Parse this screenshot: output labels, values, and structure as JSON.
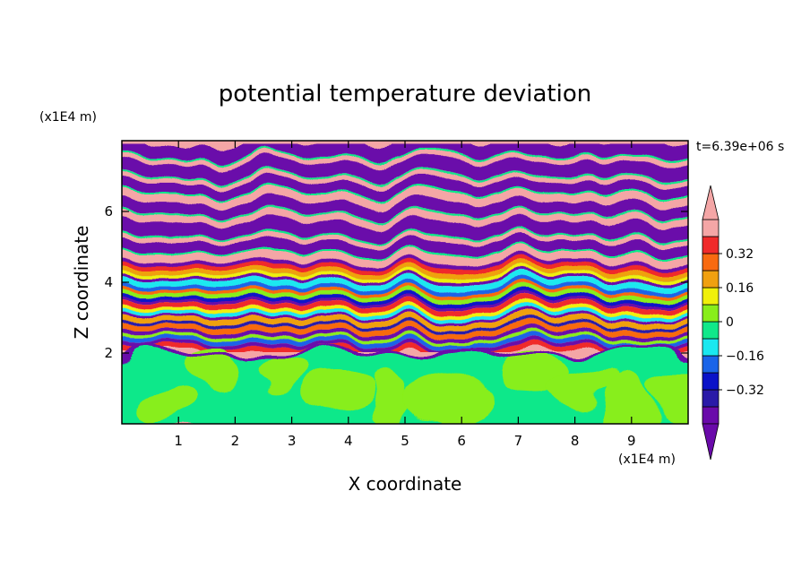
{
  "chart_data": {
    "type": "heatmap",
    "title": "potential temperature deviation",
    "xlabel": "X coordinate",
    "ylabel": "Z coordinate",
    "x_unit_label": "(x1E4 m)",
    "y_unit_label": "(x1E4 m)",
    "time_label": "t=6.39e+06 s",
    "xlim": [
      0,
      10
    ],
    "ylim": [
      0,
      8
    ],
    "x_ticks": [
      1,
      2,
      3,
      4,
      5,
      6,
      7,
      8,
      9
    ],
    "y_ticks": [
      2,
      4,
      6
    ],
    "colorbar": {
      "levels": [
        -0.48,
        -0.4,
        -0.32,
        -0.24,
        -0.16,
        -0.08,
        0,
        0.08,
        0.16,
        0.24,
        0.32,
        0.4,
        0.48
      ],
      "colors": [
        "#6a0aaa",
        "#2a1aa8",
        "#0a12c8",
        "#1a64e8",
        "#1ae8f0",
        "#10e88a",
        "#88ee1a",
        "#f0f00a",
        "#f0a010",
        "#f86a10",
        "#f02a2a",
        "#f4a6a6"
      ],
      "under_color": "#6a0aaa",
      "over_color": "#f4a6a6",
      "tick_values": [
        -0.32,
        -0.16,
        0,
        0.16,
        0.32
      ],
      "tick_labels": [
        "−0.32",
        "−0.16",
        "0",
        "0.16",
        "0.32"
      ]
    }
  }
}
